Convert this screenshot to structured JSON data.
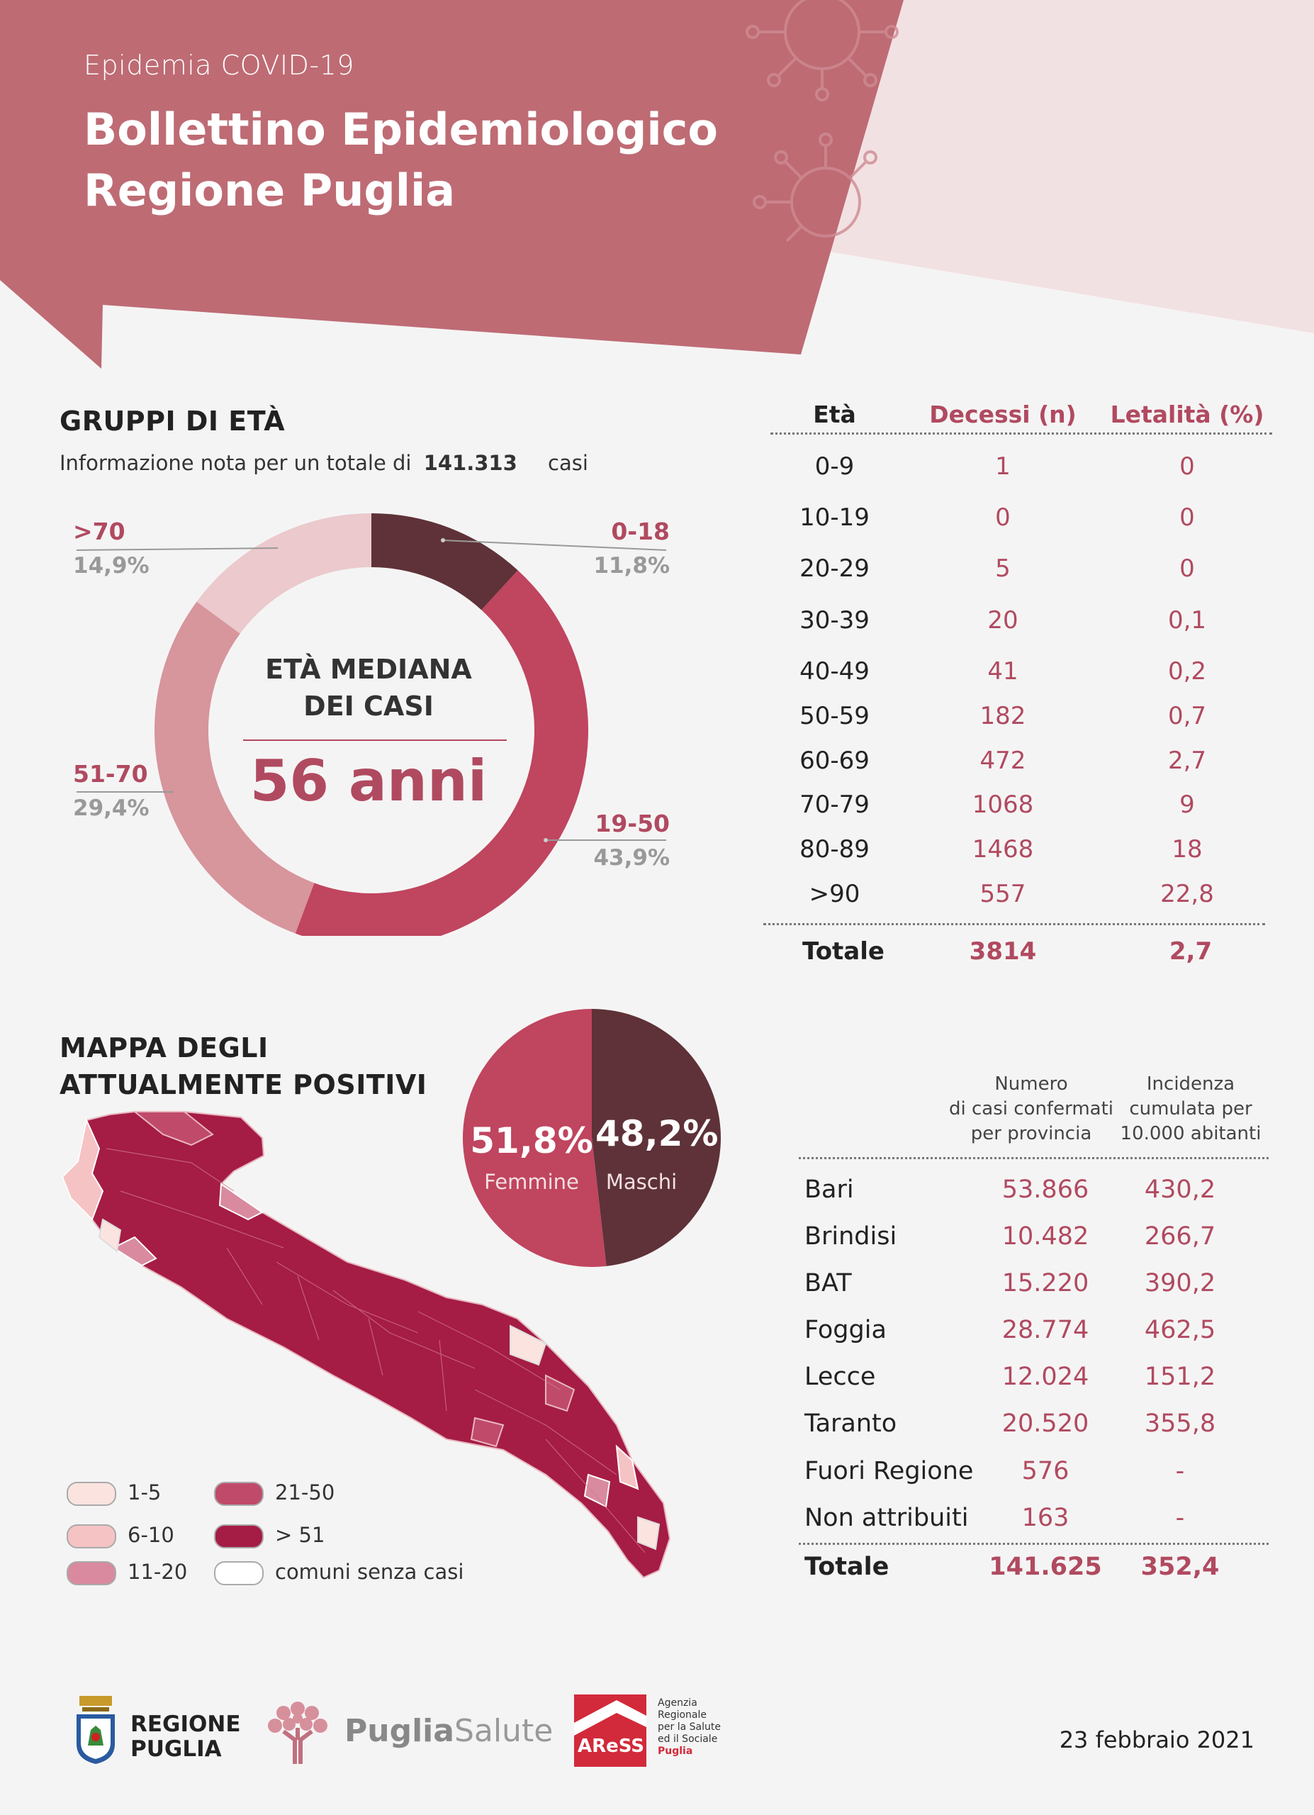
{
  "header": {
    "subtitle": "Epidemia COVID-19",
    "title_line1": "Bollettino Epidemiologico",
    "title_line2": "Regione Puglia"
  },
  "age_groups": {
    "title": "GRUPPI DI ETÀ",
    "note_prefix": "Informazione nota per un totale di",
    "note_total": "141.313",
    "note_suffix": "casi",
    "center_line1": "ETÀ MEDIANA",
    "center_line2": "DEI CASI",
    "center_value": "56 anni"
  },
  "mortality_table": {
    "headers": [
      "Età",
      "Decessi (n)",
      "Letalità (%)"
    ],
    "rows": [
      {
        "age": "0-9",
        "deaths": "1",
        "lethality": "0"
      },
      {
        "age": "10-19",
        "deaths": "0",
        "lethality": "0"
      },
      {
        "age": "20-29",
        "deaths": "5",
        "lethality": "0"
      },
      {
        "age": "30-39",
        "deaths": "20",
        "lethality": "0,1"
      },
      {
        "age": "40-49",
        "deaths": "41",
        "lethality": "0,2"
      },
      {
        "age": "50-59",
        "deaths": "182",
        "lethality": "0,7"
      },
      {
        "age": "60-69",
        "deaths": "472",
        "lethality": "2,7"
      },
      {
        "age": "70-79",
        "deaths": "1068",
        "lethality": "9"
      },
      {
        "age": "80-89",
        "deaths": "1468",
        "lethality": "18"
      },
      {
        "age": ">90",
        "deaths": "557",
        "lethality": "22,8"
      }
    ],
    "total": {
      "label": "Totale",
      "deaths": "3814",
      "lethality": "2,7"
    }
  },
  "map": {
    "title_line1": "MAPPA DEGLI",
    "title_line2": "ATTUALMENTE POSITIVI",
    "legend": [
      {
        "label": "1-5",
        "color": "#fbe4df"
      },
      {
        "label": "6-10",
        "color": "#f5c3c3"
      },
      {
        "label": "11-20",
        "color": "#d98a9f"
      },
      {
        "label": "21-50",
        "color": "#c04a6a"
      },
      {
        "label": "> 51",
        "color": "#a51c44"
      },
      {
        "label": "comuni senza casi",
        "color": "#ffffff"
      }
    ]
  },
  "province_table": {
    "header_cases": [
      "Numero",
      "di casi confermati",
      "per provincia"
    ],
    "header_incidence": [
      "Incidenza",
      "cumulata per",
      "10.000 abitanti"
    ],
    "rows": [
      {
        "name": "Bari",
        "cases": "53.866",
        "incidence": "430,2"
      },
      {
        "name": "Brindisi",
        "cases": "10.482",
        "incidence": "266,7"
      },
      {
        "name": "BAT",
        "cases": "15.220",
        "incidence": "390,2"
      },
      {
        "name": "Foggia",
        "cases": "28.774",
        "incidence": "462,5"
      },
      {
        "name": "Lecce",
        "cases": "12.024",
        "incidence": "151,2"
      },
      {
        "name": "Taranto",
        "cases": "20.520",
        "incidence": "355,8"
      },
      {
        "name": "Fuori Regione",
        "cases": "576",
        "incidence": "-"
      },
      {
        "name": "Non attribuiti",
        "cases": "163",
        "incidence": "-"
      }
    ],
    "total": {
      "name": "Totale",
      "cases": "141.625",
      "incidence": "352,4"
    }
  },
  "footer": {
    "logo1_line1": "REGIONE",
    "logo1_line2": "PUGLIA",
    "logo2_bold": "Puglia",
    "logo2_light": "Salute",
    "logo3_short": "AReSS",
    "logo3_text": [
      "Agenzia",
      "Regionale",
      "per la Salute",
      "ed il Sociale",
      "Puglia"
    ],
    "date": "23 febbraio 2021"
  },
  "chart_data": [
    {
      "type": "pie",
      "variant": "donut",
      "title": "GRUPPI DI ETÀ",
      "categories": [
        "0-18",
        "19-50",
        "51-70",
        ">70"
      ],
      "values": [
        11.8,
        43.9,
        29.4,
        14.9
      ],
      "value_labels": [
        "11,8%",
        "43,9%",
        "29,4%",
        "14,9%"
      ],
      "colors": [
        "#5e3238",
        "#c0455f",
        "#d7959c",
        "#ebc9cc"
      ]
    },
    {
      "type": "pie",
      "categories": [
        "Femmine",
        "Maschi"
      ],
      "values": [
        51.8,
        48.2
      ],
      "value_labels": [
        "51,8%",
        "48,2%"
      ],
      "colors": [
        "#c0455f",
        "#5e3238"
      ]
    }
  ]
}
